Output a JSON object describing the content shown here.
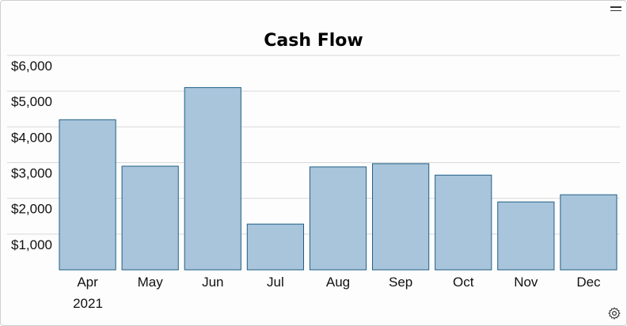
{
  "chart_data": {
    "type": "bar",
    "title": "Cash Flow",
    "categories": [
      "Apr",
      "May",
      "Jun",
      "Jul",
      "Aug",
      "Sep",
      "Oct",
      "Nov",
      "Dec"
    ],
    "year_label": "2021",
    "values": [
      4200,
      2900,
      5100,
      1280,
      2880,
      2970,
      2650,
      1900,
      2100
    ],
    "ylim": [
      0,
      6000
    ],
    "yticks": [
      1000,
      2000,
      3000,
      4000,
      5000,
      6000
    ],
    "ytick_labels": [
      "$1,000",
      "$2,000",
      "$3,000",
      "$4,000",
      "$5,000",
      "$6,000"
    ],
    "grid": true,
    "colors": {
      "bar_fill": "#a9c5db",
      "bar_stroke": "#1f5f85"
    }
  },
  "toolbar": {
    "menu_icon": "hamburger-icon",
    "settings_icon": "gear-icon"
  }
}
